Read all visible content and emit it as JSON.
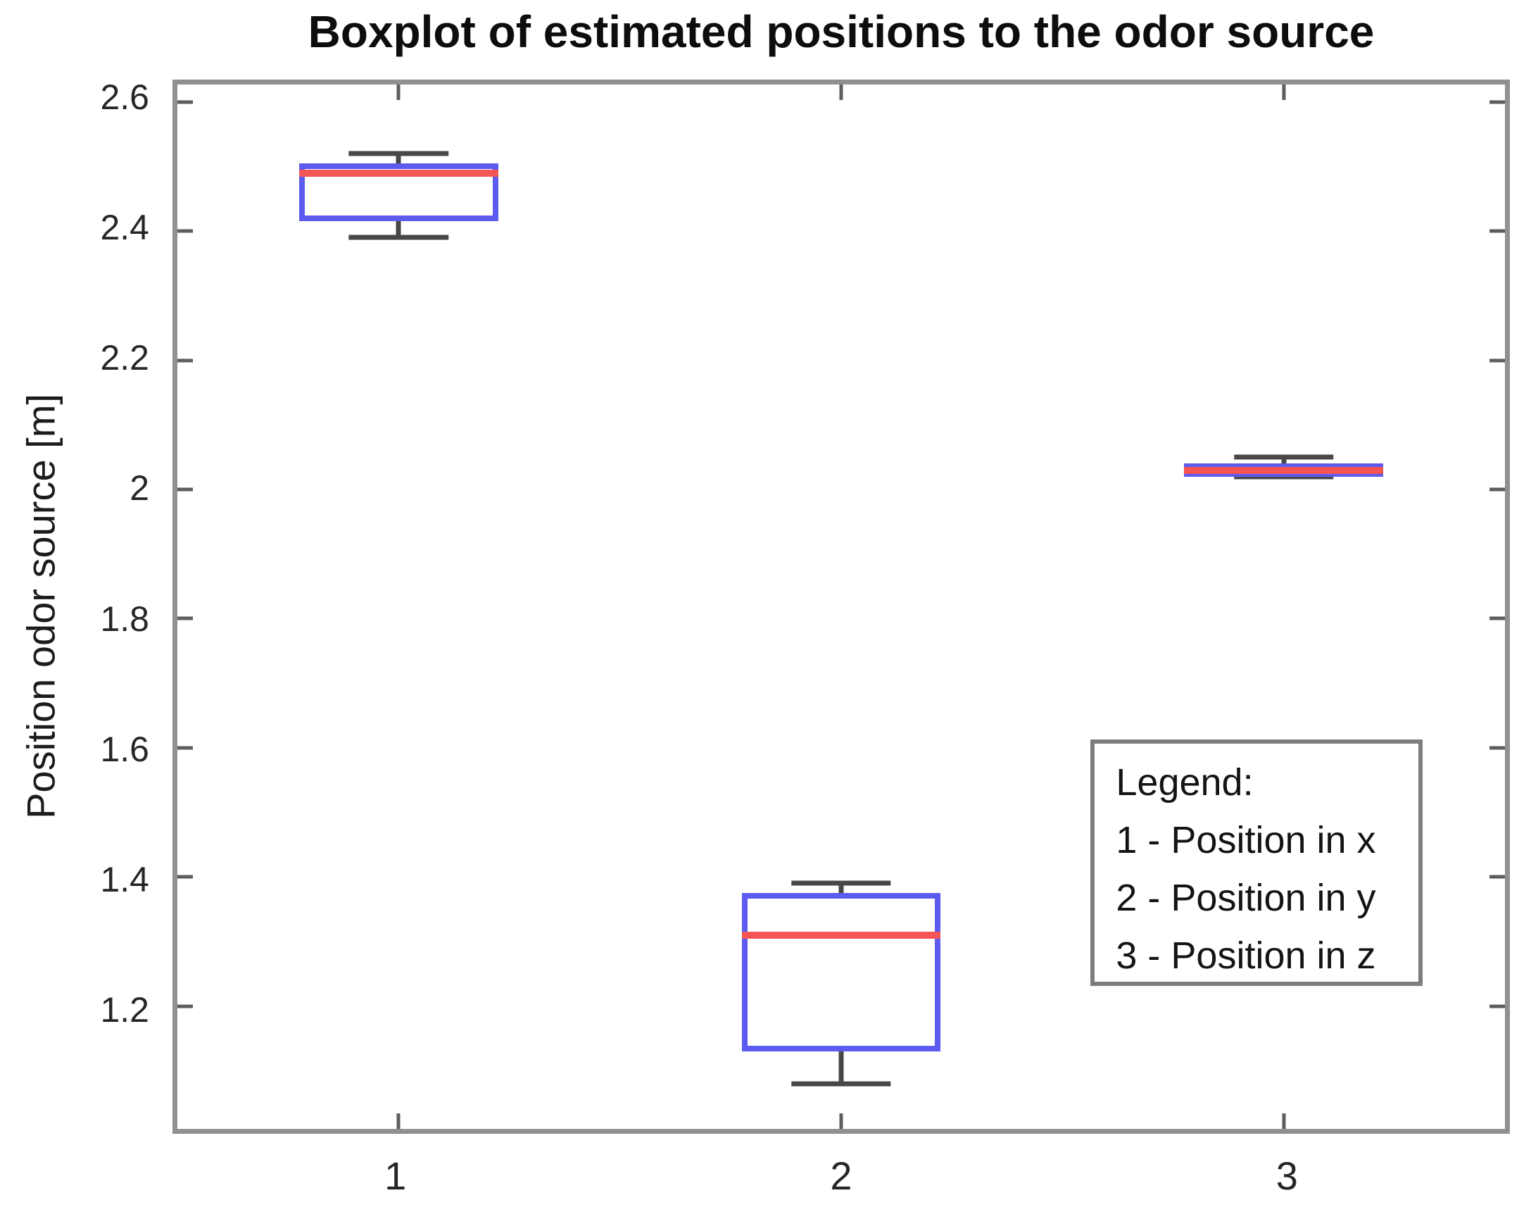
{
  "chart_data": {
    "type": "boxplot",
    "title": "Boxplot of estimated positions to the odor source",
    "ylabel": "Position odor source [m]",
    "xlabel": "",
    "grid": false,
    "axis_box": true,
    "tick_direction": "in",
    "xlim": [
      0.5,
      3.5
    ],
    "ylim": [
      1.01,
      2.627
    ],
    "categories": [
      "1",
      "2",
      "3"
    ],
    "yticks": [
      {
        "value": 2.6,
        "label": "2.6"
      },
      {
        "value": 2.4,
        "label": "2.4"
      },
      {
        "value": 2.2,
        "label": "2.2"
      },
      {
        "value": 2.0,
        "label": "2"
      },
      {
        "value": 1.8,
        "label": "1.8"
      },
      {
        "value": 1.6,
        "label": "1.6"
      },
      {
        "value": 1.4,
        "label": "1.4"
      },
      {
        "value": 1.2,
        "label": "1.2"
      }
    ],
    "series": [
      {
        "category": "1",
        "name": "Position in x",
        "whisker_low": 2.39,
        "q1": 2.415,
        "median": 2.49,
        "q3": 2.505,
        "whisker_high": 2.52
      },
      {
        "category": "2",
        "name": "Position in y",
        "whisker_low": 1.08,
        "q1": 1.13,
        "median": 1.31,
        "q3": 1.375,
        "whisker_high": 1.39
      },
      {
        "category": "3",
        "name": "Position in z",
        "whisker_low": 2.02,
        "q1": 2.02,
        "median": 2.03,
        "q3": 2.04,
        "whisker_high": 2.05
      }
    ],
    "box_width_units": 0.45,
    "cap_width_units": 0.225,
    "legend": {
      "title": "Legend:",
      "entries": [
        "1 - Position in x",
        "2 - Position in y",
        "3 - Position in z"
      ],
      "position": "lower-right"
    },
    "colors": {
      "box_edge": "#5b5bf0",
      "median": "#f65555",
      "whisker": "#474747",
      "axis": "#909090",
      "tick": "#5d5d5d",
      "text": "#262626",
      "background": "#ffffff"
    }
  }
}
